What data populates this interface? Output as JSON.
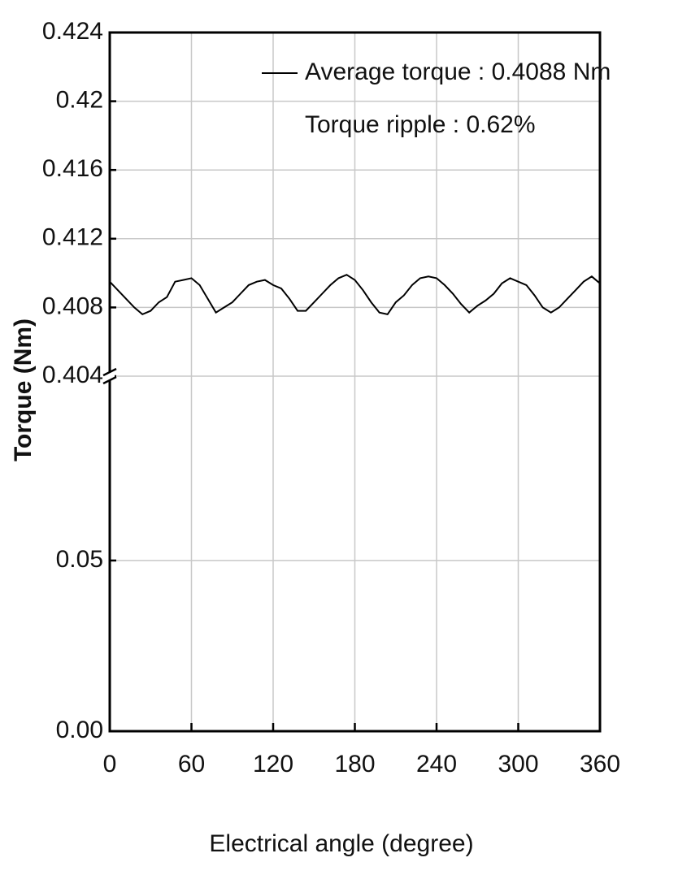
{
  "chart_data": {
    "type": "line",
    "x_label": "Electrical angle (degree)",
    "y_label": "Torque (Nm)",
    "annotation": "Torque ripple : 0.62%",
    "xlim": [
      0,
      360
    ],
    "xticks": [
      0,
      60,
      120,
      180,
      240,
      300,
      360
    ],
    "ylim": [
      0,
      0.424
    ],
    "axis_break": [
      0.104,
      0.404
    ],
    "yticks": [
      {
        "value": 0,
        "label": "0.00"
      },
      0.05,
      0.404,
      0.408,
      0.412,
      0.416,
      0.42,
      0.424
    ],
    "grid": true,
    "x": [
      0,
      6,
      12,
      18,
      24,
      30,
      36,
      42,
      48,
      54,
      60,
      66,
      72,
      78,
      84,
      90,
      96,
      102,
      108,
      114,
      120,
      126,
      132,
      138,
      144,
      150,
      156,
      162,
      168,
      174,
      180,
      186,
      192,
      198,
      204,
      210,
      216,
      222,
      228,
      234,
      240,
      246,
      252,
      258,
      264,
      270,
      276,
      282,
      288,
      294,
      300,
      306,
      312,
      318,
      324,
      330,
      336,
      342,
      348,
      354,
      360
    ],
    "series": [
      {
        "name": "Average torque : 0.4088 Nm",
        "color": "#000000",
        "values": [
          0.4095,
          0.409,
          0.4085,
          0.408,
          0.4076,
          0.4078,
          0.4083,
          0.4086,
          0.4095,
          0.4096,
          0.4097,
          0.4093,
          0.4085,
          0.4077,
          0.408,
          0.4083,
          0.4088,
          0.4093,
          0.4095,
          0.4096,
          0.4093,
          0.4091,
          0.4085,
          0.4078,
          0.4078,
          0.4083,
          0.4088,
          0.4093,
          0.4097,
          0.4099,
          0.4096,
          0.409,
          0.4083,
          0.4077,
          0.4076,
          0.4083,
          0.4087,
          0.4093,
          0.4097,
          0.4098,
          0.4097,
          0.4093,
          0.4088,
          0.4082,
          0.4077,
          0.4081,
          0.4084,
          0.4088,
          0.4094,
          0.4097,
          0.4095,
          0.4093,
          0.4087,
          0.408,
          0.4077,
          0.408,
          0.4085,
          0.409,
          0.4095,
          0.4098,
          0.4094
        ]
      }
    ]
  }
}
